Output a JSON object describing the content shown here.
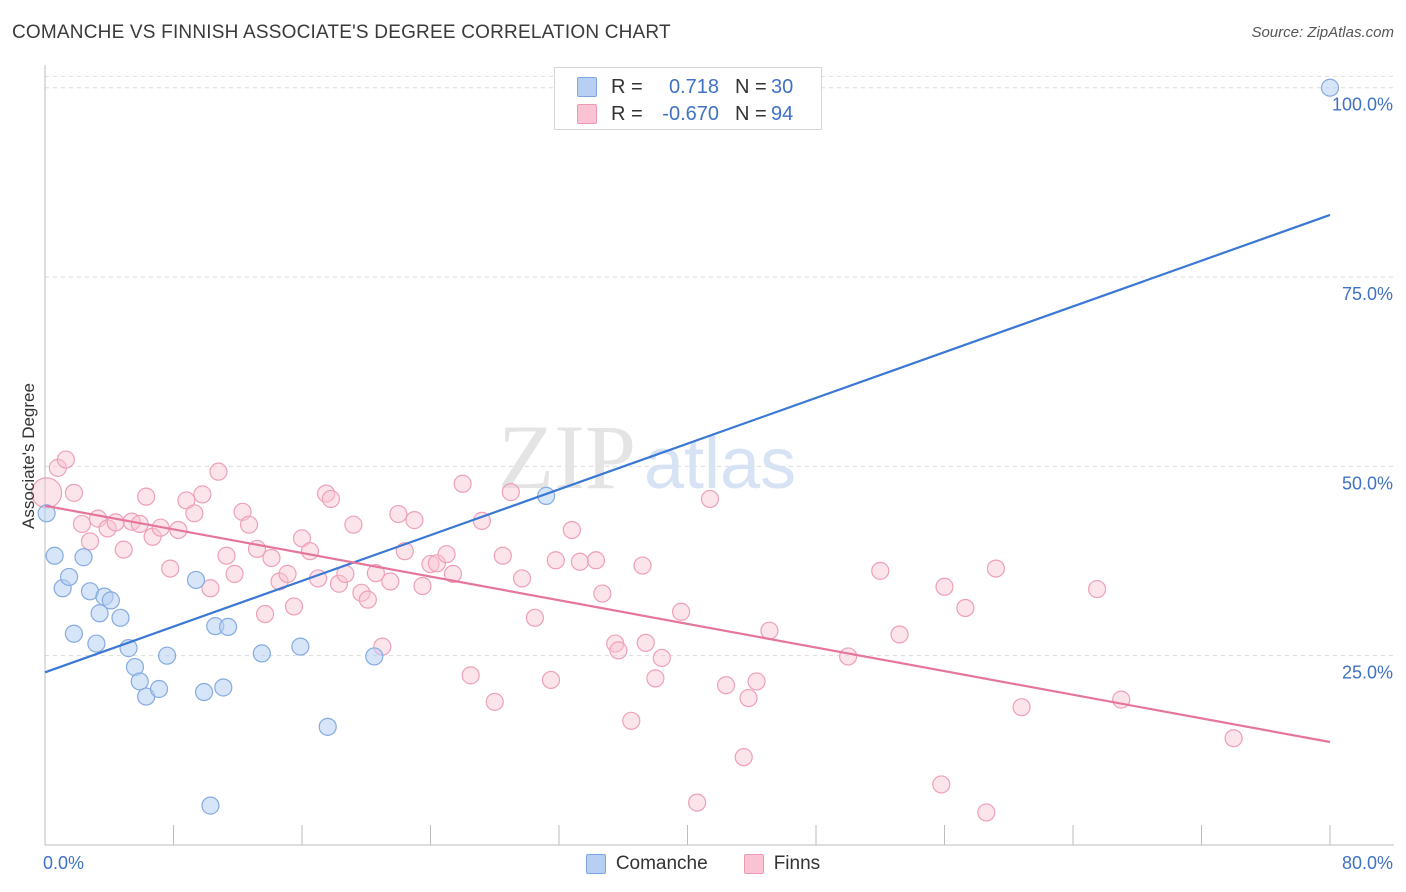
{
  "title": "COMANCHE VS FINNISH ASSOCIATE'S DEGREE CORRELATION CHART",
  "source": "Source: ZipAtlas.com",
  "watermark": {
    "zip": "ZIP",
    "atlas": "atlas"
  },
  "legend": {
    "series": [
      {
        "name": "Comanche",
        "r_label": "R =",
        "r_value": "0.718",
        "n_label": "N =",
        "n_value": "30",
        "fill": "#b6cff2",
        "stroke": "#7fa6de"
      },
      {
        "name": "Finns",
        "r_label": "R =",
        "r_value": "-0.670",
        "n_label": "N =",
        "n_value": "94",
        "fill": "#f9c3d3",
        "stroke": "#ec9ab3"
      }
    ]
  },
  "chart_data": {
    "type": "scatter",
    "title": "COMANCHE VS FINNISH ASSOCIATE'S DEGREE CORRELATION CHART",
    "xlabel": "",
    "ylabel": "Associate's Degree",
    "xlim": [
      0,
      80
    ],
    "ylim": [
      0,
      103
    ],
    "x_tick_labels": [
      "0.0%",
      "80.0%"
    ],
    "y_ticks": [
      25,
      50,
      75,
      100
    ],
    "y_tick_labels": [
      "25.0%",
      "50.0%",
      "75.0%",
      "100.0%"
    ],
    "grid": true,
    "colors": {
      "comanche": "#3a78d4",
      "finns": "#e5769b",
      "tick_text": "#3f72c4"
    },
    "series": [
      {
        "name": "Comanche",
        "points": [
          [
            0.1,
            43.8
          ],
          [
            0.6,
            38.2
          ],
          [
            1.1,
            33.9
          ],
          [
            1.5,
            35.4
          ],
          [
            1.8,
            27.9
          ],
          [
            2.4,
            38.0
          ],
          [
            2.8,
            33.5
          ],
          [
            3.2,
            26.6
          ],
          [
            3.4,
            30.6
          ],
          [
            3.7,
            32.8
          ],
          [
            4.1,
            32.3
          ],
          [
            4.7,
            30.0
          ],
          [
            5.2,
            26.0
          ],
          [
            5.6,
            23.5
          ],
          [
            5.9,
            21.6
          ],
          [
            6.3,
            19.6
          ],
          [
            7.1,
            20.6
          ],
          [
            7.6,
            25.0
          ],
          [
            9.4,
            35.0
          ],
          [
            9.9,
            20.2
          ],
          [
            10.3,
            5.2
          ],
          [
            10.6,
            28.9
          ],
          [
            11.1,
            20.8
          ],
          [
            11.4,
            28.8
          ],
          [
            13.5,
            25.3
          ],
          [
            15.9,
            26.2
          ],
          [
            17.6,
            15.6
          ],
          [
            20.5,
            24.9
          ],
          [
            31.2,
            46.1
          ],
          [
            80.0,
            100.0
          ]
        ],
        "trend": [
          [
            0,
            22.8
          ],
          [
            80,
            83.2
          ]
        ]
      },
      {
        "name": "Finns",
        "points": [
          [
            0.1,
            46.5
          ],
          [
            0.8,
            49.8
          ],
          [
            1.3,
            50.9
          ],
          [
            1.8,
            46.5
          ],
          [
            2.3,
            42.4
          ],
          [
            2.8,
            40.1
          ],
          [
            3.3,
            43.1
          ],
          [
            3.9,
            41.8
          ],
          [
            4.4,
            42.6
          ],
          [
            4.9,
            39.0
          ],
          [
            5.4,
            42.7
          ],
          [
            5.9,
            42.4
          ],
          [
            6.3,
            46.0
          ],
          [
            6.7,
            40.7
          ],
          [
            7.2,
            41.9
          ],
          [
            7.8,
            36.5
          ],
          [
            8.3,
            41.6
          ],
          [
            8.8,
            45.5
          ],
          [
            9.3,
            43.8
          ],
          [
            9.8,
            46.3
          ],
          [
            10.3,
            33.9
          ],
          [
            10.8,
            49.3
          ],
          [
            11.3,
            38.2
          ],
          [
            11.8,
            35.8
          ],
          [
            12.3,
            44.0
          ],
          [
            12.7,
            42.3
          ],
          [
            13.2,
            39.1
          ],
          [
            13.7,
            30.5
          ],
          [
            14.1,
            37.9
          ],
          [
            14.6,
            34.8
          ],
          [
            15.1,
            35.8
          ],
          [
            15.5,
            31.5
          ],
          [
            16.0,
            40.5
          ],
          [
            16.5,
            38.8
          ],
          [
            17.0,
            35.2
          ],
          [
            17.5,
            46.4
          ],
          [
            17.8,
            45.7
          ],
          [
            18.3,
            34.5
          ],
          [
            18.7,
            35.8
          ],
          [
            19.2,
            42.3
          ],
          [
            19.7,
            33.3
          ],
          [
            20.1,
            32.4
          ],
          [
            20.6,
            35.9
          ],
          [
            21.0,
            26.2
          ],
          [
            21.5,
            34.8
          ],
          [
            22.0,
            43.7
          ],
          [
            22.4,
            38.8
          ],
          [
            23.0,
            42.9
          ],
          [
            23.5,
            34.2
          ],
          [
            24.0,
            37.1
          ],
          [
            24.4,
            37.2
          ],
          [
            25.0,
            38.4
          ],
          [
            25.4,
            35.8
          ],
          [
            26.0,
            47.7
          ],
          [
            26.5,
            22.4
          ],
          [
            27.2,
            42.8
          ],
          [
            28.0,
            18.9
          ],
          [
            28.5,
            38.2
          ],
          [
            29.0,
            46.6
          ],
          [
            29.7,
            35.2
          ],
          [
            30.5,
            30.0
          ],
          [
            31.5,
            21.8
          ],
          [
            31.8,
            37.6
          ],
          [
            32.8,
            41.6
          ],
          [
            33.3,
            37.4
          ],
          [
            34.3,
            37.6
          ],
          [
            34.7,
            33.2
          ],
          [
            35.5,
            26.6
          ],
          [
            35.7,
            25.7
          ],
          [
            36.5,
            16.4
          ],
          [
            37.2,
            36.9
          ],
          [
            37.4,
            26.7
          ],
          [
            38.0,
            22.0
          ],
          [
            38.4,
            24.7
          ],
          [
            39.6,
            30.8
          ],
          [
            40.6,
            5.6
          ],
          [
            41.4,
            45.7
          ],
          [
            42.4,
            21.1
          ],
          [
            43.5,
            11.6
          ],
          [
            43.8,
            19.4
          ],
          [
            44.3,
            21.6
          ],
          [
            45.1,
            28.3
          ],
          [
            50.0,
            24.9
          ],
          [
            52.0,
            36.2
          ],
          [
            53.2,
            27.8
          ],
          [
            55.8,
            8.0
          ],
          [
            56.0,
            34.1
          ],
          [
            57.3,
            31.3
          ],
          [
            58.6,
            4.3
          ],
          [
            59.2,
            36.5
          ],
          [
            60.8,
            18.2
          ],
          [
            65.5,
            33.8
          ],
          [
            67.0,
            19.2
          ],
          [
            74.0,
            14.1
          ]
        ],
        "trend": [
          [
            0,
            44.8
          ],
          [
            80,
            13.6
          ]
        ]
      }
    ]
  }
}
